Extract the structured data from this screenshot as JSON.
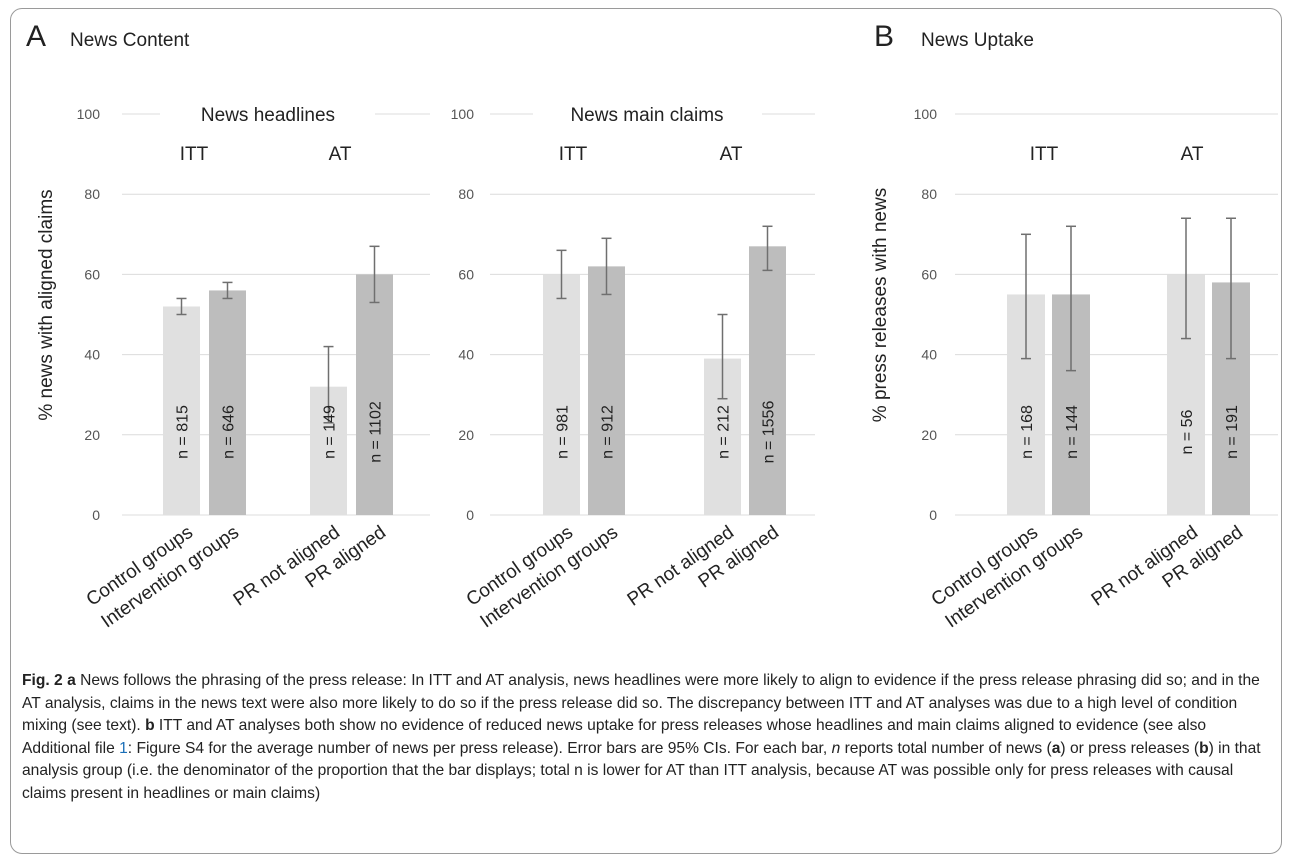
{
  "colors": {
    "light_bar": "#e0e0e0",
    "dark_bar": "#bdbdbd",
    "grid": "#dcdcdc",
    "error_bar": "#6f6f6f",
    "text": "#222222",
    "link": "#1a6fb8"
  },
  "panels": [
    {
      "letter": "A",
      "title": "News Content"
    },
    {
      "letter": "B",
      "title": "News Uptake"
    }
  ],
  "chart_data": [
    {
      "type": "bar",
      "panel": "A",
      "subtitle": "News headlines",
      "ylabel": "% news with aligned claims",
      "ylim": [
        0,
        100
      ],
      "yticks": [
        0,
        20,
        40,
        60,
        80,
        100
      ],
      "grid": true,
      "groups": [
        "ITT",
        "AT"
      ],
      "categories": [
        "Control groups",
        "Intervention groups",
        "PR not aligned",
        "PR aligned"
      ],
      "values": [
        52,
        56,
        32,
        60
      ],
      "ci_low": [
        50,
        54,
        23,
        53
      ],
      "ci_high": [
        54,
        58,
        42,
        67
      ],
      "n_labels": [
        "n = 815",
        "n = 646",
        "n = 149",
        "n = 1102"
      ]
    },
    {
      "type": "bar",
      "panel": "A",
      "subtitle": "News main claims",
      "ylabel": "",
      "ylim": [
        0,
        100
      ],
      "yticks": [
        0,
        20,
        40,
        60,
        80,
        100
      ],
      "grid": true,
      "groups": [
        "ITT",
        "AT"
      ],
      "categories": [
        "Control groups",
        "Intervention groups",
        "PR not aligned",
        "PR aligned"
      ],
      "values": [
        60,
        62,
        39,
        67
      ],
      "ci_low": [
        54,
        55,
        29,
        61
      ],
      "ci_high": [
        66,
        69,
        50,
        72
      ],
      "n_labels": [
        "n = 981",
        "n = 912",
        "n = 212",
        "n = 1556"
      ]
    },
    {
      "type": "bar",
      "panel": "B",
      "subtitle": "",
      "ylabel": "% press releases with news",
      "ylim": [
        0,
        100
      ],
      "yticks": [
        0,
        20,
        40,
        60,
        80,
        100
      ],
      "grid": true,
      "groups": [
        "ITT",
        "AT"
      ],
      "categories": [
        "Control groups",
        "Intervention groups",
        "PR not aligned",
        "PR aligned"
      ],
      "values": [
        55,
        55,
        60,
        58
      ],
      "ci_low": [
        39,
        36,
        44,
        39
      ],
      "ci_high": [
        70,
        72,
        74,
        74
      ],
      "n_labels": [
        "n = 168",
        "n = 144",
        "n = 56",
        "n = 191"
      ]
    }
  ],
  "caption": {
    "fig_label": "Fig. 2",
    "a_letter": "a",
    "a_text": " News follows the phrasing of the press release: In ITT and AT analysis, news headlines were more likely to align to evidence if the press release phrasing did so; and in the AT analysis, claims in the news text were also more likely to do so if the press release did so. The discrepancy between ITT and AT analyses was due to a high level of condition mixing (see text). ",
    "b_letter": "b",
    "b_text": " ITT and AT analyses both show no evidence of reduced news uptake for press releases whose headlines and main claims aligned to evidence (see also Additional file ",
    "ref": "1",
    "b_text2": ": Figure S4 for the average number of news per press release). Error bars are 95% CIs. For each bar, ",
    "n_italic": "n",
    "b_text3": " reports total number of news (",
    "a_ref": "a",
    "b_text4": ") or press releases (",
    "b_ref": "b",
    "b_text5": ") in that analysis group (i.e. the denominator of the proportion that the bar displays; total n is lower for AT than ITT analysis, because AT was possible only for press releases with causal claims present in headlines or main claims)"
  }
}
